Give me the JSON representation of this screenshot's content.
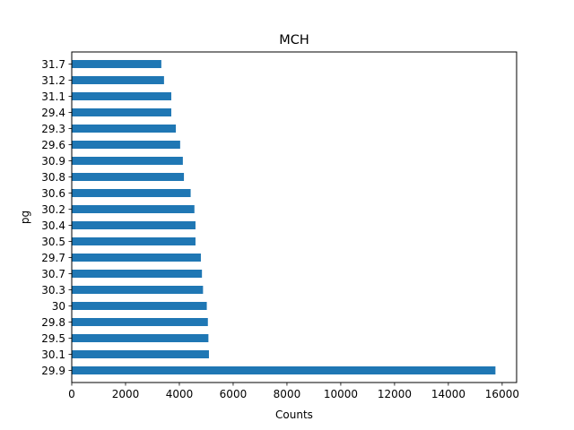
{
  "chart_data": {
    "type": "bar",
    "orientation": "horizontal",
    "title": "MCH",
    "xlabel": "Counts",
    "ylabel": "pg",
    "categories": [
      "29.9",
      "30.1",
      "29.5",
      "29.8",
      "30",
      "30.3",
      "30.7",
      "29.7",
      "30.5",
      "30.4",
      "30.2",
      "30.6",
      "30.8",
      "30.9",
      "29.6",
      "29.3",
      "29.4",
      "31.1",
      "31.2",
      "31.7"
    ],
    "values": [
      15750,
      5100,
      5080,
      5060,
      5020,
      4880,
      4840,
      4800,
      4600,
      4600,
      4560,
      4420,
      4170,
      4130,
      4030,
      3870,
      3700,
      3700,
      3430,
      3330
    ],
    "xlim": [
      0,
      16537
    ],
    "xticks": [
      "0",
      "2000",
      "4000",
      "6000",
      "8000",
      "10000",
      "12000",
      "14000",
      "16000"
    ],
    "bar_color": "#1f77b4",
    "grid": false,
    "legend": false
  }
}
